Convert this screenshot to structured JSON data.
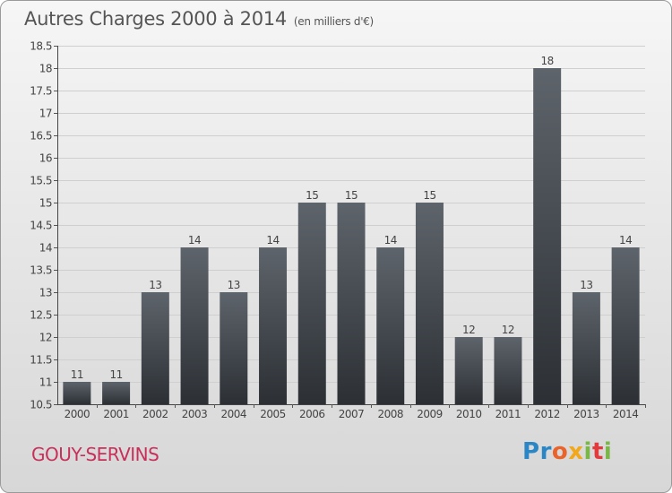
{
  "header": {
    "title": "Autres Charges 2000 à 2014",
    "subtitle": "(en milliers d'€)"
  },
  "footer": {
    "commune": "GOUY-SERVINS",
    "logo_text": "Proxiti"
  },
  "colors": {
    "bar_top": "#5e646b",
    "bar_bottom": "#2c3035",
    "commune": "#c8305a"
  },
  "chart_data": {
    "type": "bar",
    "title": "Autres Charges 2000 à 2014",
    "subtitle": "(en milliers d'€)",
    "categories": [
      "2000",
      "2001",
      "2002",
      "2003",
      "2004",
      "2005",
      "2006",
      "2007",
      "2008",
      "2009",
      "2010",
      "2011",
      "2012",
      "2013",
      "2014"
    ],
    "values": [
      11,
      11,
      13,
      14,
      13,
      14,
      15,
      15,
      14,
      15,
      12,
      12,
      18,
      13,
      14
    ],
    "data_labels": [
      "11",
      "11",
      "13",
      "14",
      "13",
      "14",
      "15",
      "15",
      "14",
      "15",
      "12",
      "12",
      "18",
      "13",
      "14"
    ],
    "ylim": [
      10.5,
      18.5
    ],
    "yticks": [
      10.5,
      11,
      11.5,
      12,
      12.5,
      13,
      13.5,
      14,
      14.5,
      15,
      15.5,
      16,
      16.5,
      17,
      17.5,
      18,
      18.5
    ],
    "ytick_labels": [
      "10.5",
      "11",
      "11.5",
      "12",
      "12.5",
      "13",
      "13.5",
      "14",
      "14.5",
      "15",
      "15.5",
      "16",
      "16.5",
      "17",
      "17.5",
      "18",
      "18.5"
    ],
    "grid": true,
    "xlabel": "",
    "ylabel": ""
  }
}
